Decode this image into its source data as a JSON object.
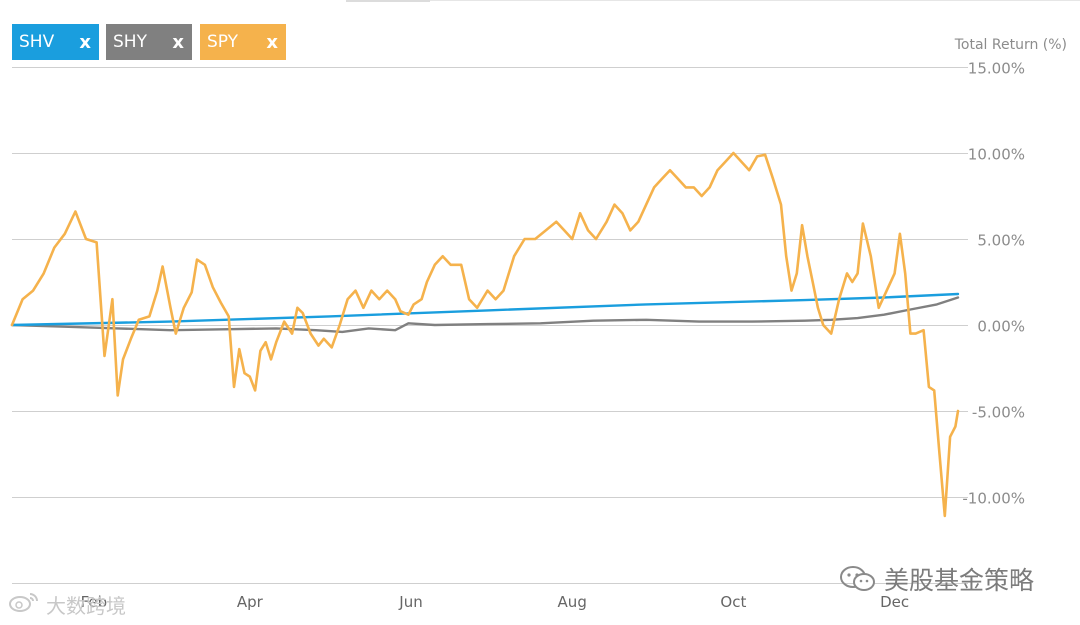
{
  "legend": {
    "chips": [
      {
        "label": "SHV",
        "close": "x",
        "color": "#1a9ede"
      },
      {
        "label": "SHY",
        "close": "x",
        "color": "#808080"
      },
      {
        "label": "SPY",
        "close": "x",
        "color": "#f5b24c"
      }
    ]
  },
  "watermark": {
    "right_text": "美股基金策略",
    "left_text": "大数跨境"
  },
  "chart_data": {
    "type": "line",
    "title": "",
    "ylabel": "Total Return (%)",
    "y_ticks": [
      "15.00%",
      "10.00%",
      "5.00%",
      "0.00%",
      "-5.00%",
      "-10.00%"
    ],
    "y_tick_values": [
      15,
      10,
      5,
      0,
      -5,
      -10
    ],
    "ylim": [
      -15,
      15
    ],
    "x_ticks": [
      {
        "label": "Feb",
        "day": 31
      },
      {
        "label": "Apr",
        "day": 90
      },
      {
        "label": "Jun",
        "day": 151
      },
      {
        "label": "Aug",
        "day": 212
      },
      {
        "label": "Oct",
        "day": 273
      },
      {
        "label": "Dec",
        "day": 334
      }
    ],
    "xlim": [
      0,
      358
    ],
    "grid": true,
    "legend": "top-left",
    "series": [
      {
        "name": "SHV",
        "color": "#1a9ede",
        "points": [
          [
            0,
            0.0
          ],
          [
            60,
            0.2
          ],
          [
            120,
            0.5
          ],
          [
            180,
            0.85
          ],
          [
            240,
            1.2
          ],
          [
            300,
            1.45
          ],
          [
            330,
            1.6
          ],
          [
            358,
            1.8
          ]
        ]
      },
      {
        "name": "SHY",
        "color": "#808080",
        "points": [
          [
            0,
            0.0
          ],
          [
            20,
            -0.1
          ],
          [
            40,
            -0.2
          ],
          [
            60,
            -0.3
          ],
          [
            80,
            -0.25
          ],
          [
            100,
            -0.2
          ],
          [
            115,
            -0.3
          ],
          [
            125,
            -0.4
          ],
          [
            135,
            -0.2
          ],
          [
            145,
            -0.3
          ],
          [
            150,
            0.1
          ],
          [
            160,
            0.0
          ],
          [
            180,
            0.05
          ],
          [
            200,
            0.1
          ],
          [
            220,
            0.25
          ],
          [
            240,
            0.3
          ],
          [
            260,
            0.2
          ],
          [
            280,
            0.2
          ],
          [
            300,
            0.25
          ],
          [
            310,
            0.3
          ],
          [
            320,
            0.4
          ],
          [
            330,
            0.6
          ],
          [
            340,
            0.9
          ],
          [
            350,
            1.2
          ],
          [
            358,
            1.6
          ]
        ]
      },
      {
        "name": "SPY",
        "color": "#f5b24c",
        "points": [
          [
            0,
            0.0
          ],
          [
            4,
            1.5
          ],
          [
            8,
            2.0
          ],
          [
            12,
            3.0
          ],
          [
            16,
            4.5
          ],
          [
            20,
            5.3
          ],
          [
            24,
            6.6
          ],
          [
            28,
            5.0
          ],
          [
            32,
            4.8
          ],
          [
            35,
            -1.8
          ],
          [
            38,
            1.5
          ],
          [
            40,
            -4.1
          ],
          [
            42,
            -2.0
          ],
          [
            45,
            -0.8
          ],
          [
            48,
            0.3
          ],
          [
            52,
            0.5
          ],
          [
            55,
            2.0
          ],
          [
            57,
            3.4
          ],
          [
            60,
            1.0
          ],
          [
            62,
            -0.5
          ],
          [
            65,
            1.0
          ],
          [
            68,
            1.9
          ],
          [
            70,
            3.8
          ],
          [
            73,
            3.5
          ],
          [
            76,
            2.2
          ],
          [
            79,
            1.3
          ],
          [
            82,
            0.5
          ],
          [
            84,
            -3.6
          ],
          [
            86,
            -1.4
          ],
          [
            88,
            -2.8
          ],
          [
            90,
            -3.0
          ],
          [
            92,
            -3.8
          ],
          [
            94,
            -1.5
          ],
          [
            96,
            -1.0
          ],
          [
            98,
            -2.0
          ],
          [
            100,
            -1.0
          ],
          [
            103,
            0.2
          ],
          [
            106,
            -0.5
          ],
          [
            108,
            1.0
          ],
          [
            110,
            0.7
          ],
          [
            113,
            -0.5
          ],
          [
            116,
            -1.2
          ],
          [
            118,
            -0.8
          ],
          [
            121,
            -1.3
          ],
          [
            124,
            0.0
          ],
          [
            127,
            1.5
          ],
          [
            130,
            2.0
          ],
          [
            133,
            1.0
          ],
          [
            136,
            2.0
          ],
          [
            139,
            1.5
          ],
          [
            142,
            2.0
          ],
          [
            145,
            1.5
          ],
          [
            147,
            0.8
          ],
          [
            150,
            0.6
          ],
          [
            152,
            1.2
          ],
          [
            155,
            1.5
          ],
          [
            157,
            2.5
          ],
          [
            160,
            3.5
          ],
          [
            163,
            4.0
          ],
          [
            166,
            3.5
          ],
          [
            170,
            3.5
          ],
          [
            173,
            1.5
          ],
          [
            176,
            1.0
          ],
          [
            180,
            2.0
          ],
          [
            183,
            1.5
          ],
          [
            186,
            2.0
          ],
          [
            190,
            4.0
          ],
          [
            194,
            5.0
          ],
          [
            198,
            5.0
          ],
          [
            202,
            5.5
          ],
          [
            206,
            6.0
          ],
          [
            209,
            5.5
          ],
          [
            212,
            5.0
          ],
          [
            215,
            6.5
          ],
          [
            218,
            5.5
          ],
          [
            221,
            5.0
          ],
          [
            225,
            6.0
          ],
          [
            228,
            7.0
          ],
          [
            231,
            6.5
          ],
          [
            234,
            5.5
          ],
          [
            237,
            6.0
          ],
          [
            240,
            7.0
          ],
          [
            243,
            8.0
          ],
          [
            246,
            8.5
          ],
          [
            249,
            9.0
          ],
          [
            252,
            8.5
          ],
          [
            255,
            8.0
          ],
          [
            258,
            8.0
          ],
          [
            261,
            7.5
          ],
          [
            264,
            8.0
          ],
          [
            267,
            9.0
          ],
          [
            270,
            9.5
          ],
          [
            273,
            10.0
          ],
          [
            276,
            9.5
          ],
          [
            279,
            9.0
          ],
          [
            282,
            9.8
          ],
          [
            285,
            9.9
          ],
          [
            288,
            8.5
          ],
          [
            291,
            7.0
          ],
          [
            293,
            4.0
          ],
          [
            295,
            2.0
          ],
          [
            297,
            3.0
          ],
          [
            299,
            5.8
          ],
          [
            301,
            4.0
          ],
          [
            303,
            2.5
          ],
          [
            305,
            1.0
          ],
          [
            307,
            0.0
          ],
          [
            310,
            -0.5
          ],
          [
            313,
            1.5
          ],
          [
            316,
            3.0
          ],
          [
            318,
            2.5
          ],
          [
            320,
            3.0
          ],
          [
            322,
            5.9
          ],
          [
            325,
            4.0
          ],
          [
            328,
            1.0
          ],
          [
            331,
            2.0
          ],
          [
            334,
            3.0
          ],
          [
            336,
            5.3
          ],
          [
            338,
            3.0
          ],
          [
            340,
            -0.5
          ],
          [
            342,
            -0.5
          ],
          [
            345,
            -0.3
          ],
          [
            347,
            -3.6
          ],
          [
            349,
            -3.8
          ],
          [
            351,
            -7.5
          ],
          [
            353,
            -11.1
          ],
          [
            355,
            -6.5
          ],
          [
            357,
            -5.9
          ],
          [
            358,
            -5.0
          ]
        ]
      }
    ]
  }
}
